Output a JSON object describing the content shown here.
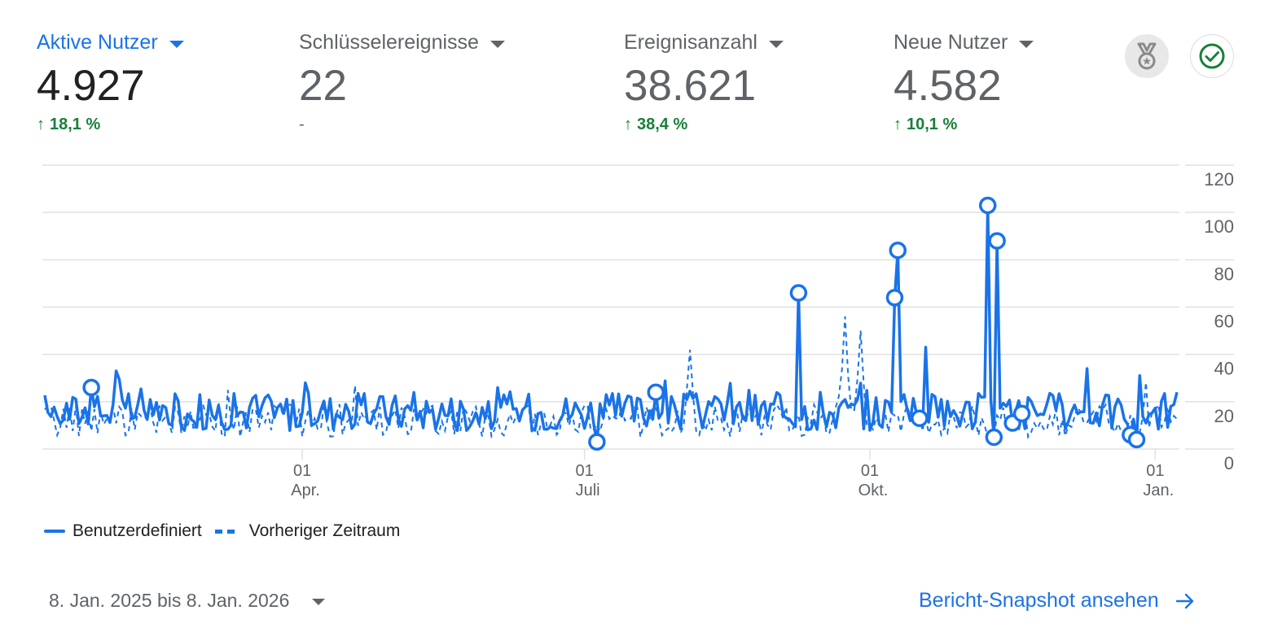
{
  "metrics": [
    {
      "title": "Aktive Nutzer",
      "value": "4.927",
      "change": "18,1 %",
      "trend": "up",
      "active": true
    },
    {
      "title": "Schlüsselereignisse",
      "value": "22",
      "change": "-",
      "trend": "none",
      "active": false
    },
    {
      "title": "Ereignisanzahl",
      "value": "38.621",
      "change": "38,4 %",
      "trend": "up",
      "active": false
    },
    {
      "title": "Neue Nutzer",
      "value": "4.582",
      "change": "10,1 %",
      "trend": "up",
      "active": false
    }
  ],
  "icons": {
    "medal": "medal-icon",
    "check": "check-circle-icon",
    "arrow_up": "↑",
    "arrow_right": "arrow-right-icon"
  },
  "legend": {
    "current": "Benutzerdefiniert",
    "previous": "Vorheriger Zeitraum"
  },
  "footer": {
    "date_range": "8. Jan. 2025 bis 8. Jan. 2026",
    "snapshot_link": "Bericht-Snapshot ansehen"
  },
  "colors": {
    "accent": "#1a73e8",
    "positive": "#188038",
    "muted": "#5f6368",
    "grid": "#e0e0e0"
  },
  "chart_data": {
    "type": "line",
    "title": "",
    "xlabel": "",
    "ylabel": "Aktive Nutzer",
    "ylim": [
      0,
      120
    ],
    "y_ticks": [
      0,
      20,
      40,
      60,
      80,
      100,
      120
    ],
    "y_axis_position": "right",
    "grid": true,
    "legend_position": "bottom-left",
    "x_range": [
      "2025-01-08",
      "2026-01-08"
    ],
    "x_ticks": [
      {
        "label_day": "01",
        "label_month": "Apr.",
        "day_index": 83
      },
      {
        "label_day": "01",
        "label_month": "Juli",
        "day_index": 174
      },
      {
        "label_day": "01",
        "label_month": "Okt.",
        "day_index": 266
      },
      {
        "label_day": "01",
        "label_month": "Jan.",
        "day_index": 358
      }
    ],
    "series": [
      {
        "name": "Benutzerdefiniert",
        "style": "solid",
        "baseline_range": [
          5,
          35
        ],
        "typical": 15
      },
      {
        "name": "Vorheriger Zeitraum",
        "style": "dashed",
        "baseline_range": [
          2,
          57
        ],
        "typical": 12,
        "peaks": [
          {
            "day_index": 208,
            "value": 42
          },
          {
            "day_index": 258,
            "value": 56
          },
          {
            "day_index": 263,
            "value": 50
          }
        ]
      }
    ],
    "anomalies": [
      {
        "day_index": 15,
        "value": 26
      },
      {
        "day_index": 178,
        "value": 3
      },
      {
        "day_index": 197,
        "value": 24
      },
      {
        "day_index": 243,
        "value": 66
      },
      {
        "day_index": 274,
        "value": 64
      },
      {
        "day_index": 275,
        "value": 84
      },
      {
        "day_index": 282,
        "value": 13
      },
      {
        "day_index": 304,
        "value": 103
      },
      {
        "day_index": 306,
        "value": 5
      },
      {
        "day_index": 307,
        "value": 88
      },
      {
        "day_index": 312,
        "value": 11
      },
      {
        "day_index": 315,
        "value": 15
      },
      {
        "day_index": 350,
        "value": 6
      },
      {
        "day_index": 352,
        "value": 4
      }
    ],
    "notable_points": [
      {
        "day_index": 23,
        "value": 33
      },
      {
        "day_index": 284,
        "value": 43
      },
      {
        "day_index": 336,
        "value": 34
      },
      {
        "day_index": 365,
        "value": 24
      }
    ]
  }
}
